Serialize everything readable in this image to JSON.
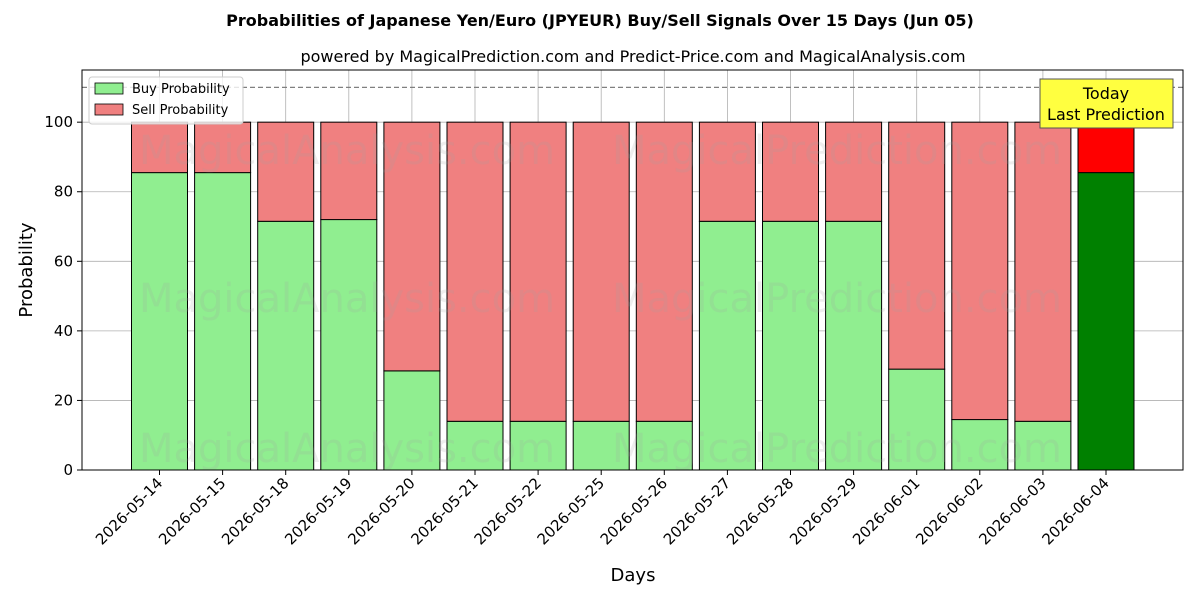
{
  "chart_data": {
    "type": "bar",
    "title": "Probabilities of Japanese Yen/Euro (JPYEUR) Buy/Sell Signals Over 15 Days (Jun 05)",
    "subtitle": "powered by MagicalPrediction.com and Predict-Price.com and MagicalAnalysis.com",
    "xlabel": "Days",
    "ylabel": "Probability",
    "ylim": [
      0,
      115
    ],
    "yticks": [
      0,
      20,
      40,
      60,
      80,
      100
    ],
    "reference_line": 110,
    "grid": true,
    "legend_position": "top-left",
    "stacked": true,
    "categories": [
      "2026-05-14",
      "2026-05-15",
      "2026-05-18",
      "2026-05-19",
      "2026-05-20",
      "2026-05-21",
      "2026-05-22",
      "2026-05-25",
      "2026-05-26",
      "2026-05-27",
      "2026-05-28",
      "2026-05-29",
      "2026-06-01",
      "2026-06-02",
      "2026-06-03",
      "2026-06-04"
    ],
    "series": [
      {
        "name": "Buy Probability",
        "color": "#90EE90",
        "values": [
          85.5,
          85.5,
          71.5,
          72,
          28.5,
          14,
          14,
          14,
          14,
          71.5,
          71.5,
          71.5,
          29,
          14.5,
          14,
          85.5
        ]
      },
      {
        "name": "Sell Probability",
        "color": "#F08080",
        "values": [
          14.5,
          14.5,
          28.5,
          28,
          71.5,
          86,
          86,
          86,
          86,
          28.5,
          28.5,
          28.5,
          71,
          85.5,
          86,
          14.5
        ]
      }
    ],
    "highlight": {
      "index": 15,
      "buy_color": "#008000",
      "sell_color": "#FF0000"
    },
    "annotation": {
      "line1": "Today",
      "line2": "Last Prediction",
      "color": "#FFFF40"
    },
    "watermarks": [
      "MagicalAnalysis.com",
      "MagicalPrediction.com"
    ]
  }
}
